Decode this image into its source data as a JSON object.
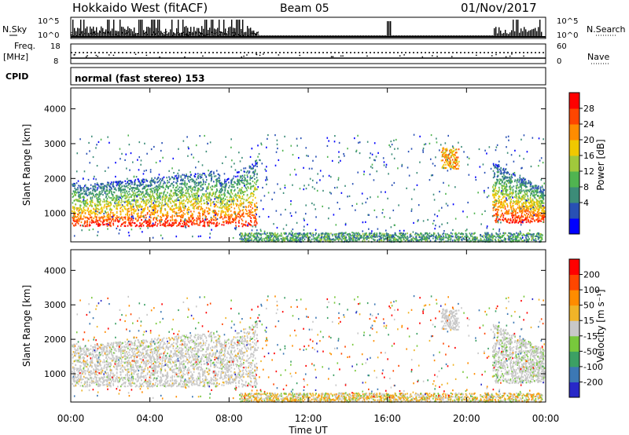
{
  "header": {
    "station": "Hokkaido West (fitACF)",
    "beam": "Beam 05",
    "date": "01/Nov/2017"
  },
  "strip": {
    "nsky_label": "N.Sky",
    "nsky_ticks": [
      "10^5",
      "10^0"
    ],
    "nsearch_label": "N.Search",
    "freq_label": "Freq.",
    "freq_unit": "[MHz]",
    "freq_ticks": [
      "18",
      "8"
    ],
    "nave_label": "Nave",
    "nave_ticks": [
      "60",
      "0"
    ],
    "cpid_label": "CPID",
    "cpid_value": "normal (fast stereo) 153"
  },
  "chart_data": [
    {
      "type": "heatmap",
      "name": "power",
      "ylabel": "Slant Range [km]",
      "ylim": [
        180,
        4600
      ],
      "yticks": [
        1000,
        2000,
        3000,
        4000
      ],
      "colorbar_label": "Power [dB]",
      "colorbar_ticks": [
        "28",
        "24",
        "20",
        "16",
        "12",
        "8",
        "4"
      ],
      "colors": [
        "#0000ff",
        "#2850b4",
        "#3c8c78",
        "#50b450",
        "#a0c83c",
        "#f0c800",
        "#ff8c00",
        "#ff4600",
        "#ff0000"
      ]
    },
    {
      "type": "heatmap",
      "name": "velocity",
      "ylabel": "Slant Range [km]",
      "xlabel": "Time UT",
      "ylim": [
        180,
        4600
      ],
      "yticks": [
        1000,
        2000,
        3000,
        4000
      ],
      "xticks": [
        "00:00",
        "04:00",
        "08:00",
        "12:00",
        "16:00",
        "20:00",
        "00:00"
      ],
      "colorbar_label": "Velocity [m s⁻¹]",
      "colorbar_ticks": [
        "200",
        "100",
        "50",
        "15",
        "-15",
        "-50",
        "-100",
        "-200"
      ],
      "colors": [
        "#2828c8",
        "#3c78b4",
        "#3ca064",
        "#78c83c",
        "#c8c8c8",
        "#f0b428",
        "#ff8c00",
        "#ff4600",
        "#ff0000"
      ]
    }
  ]
}
